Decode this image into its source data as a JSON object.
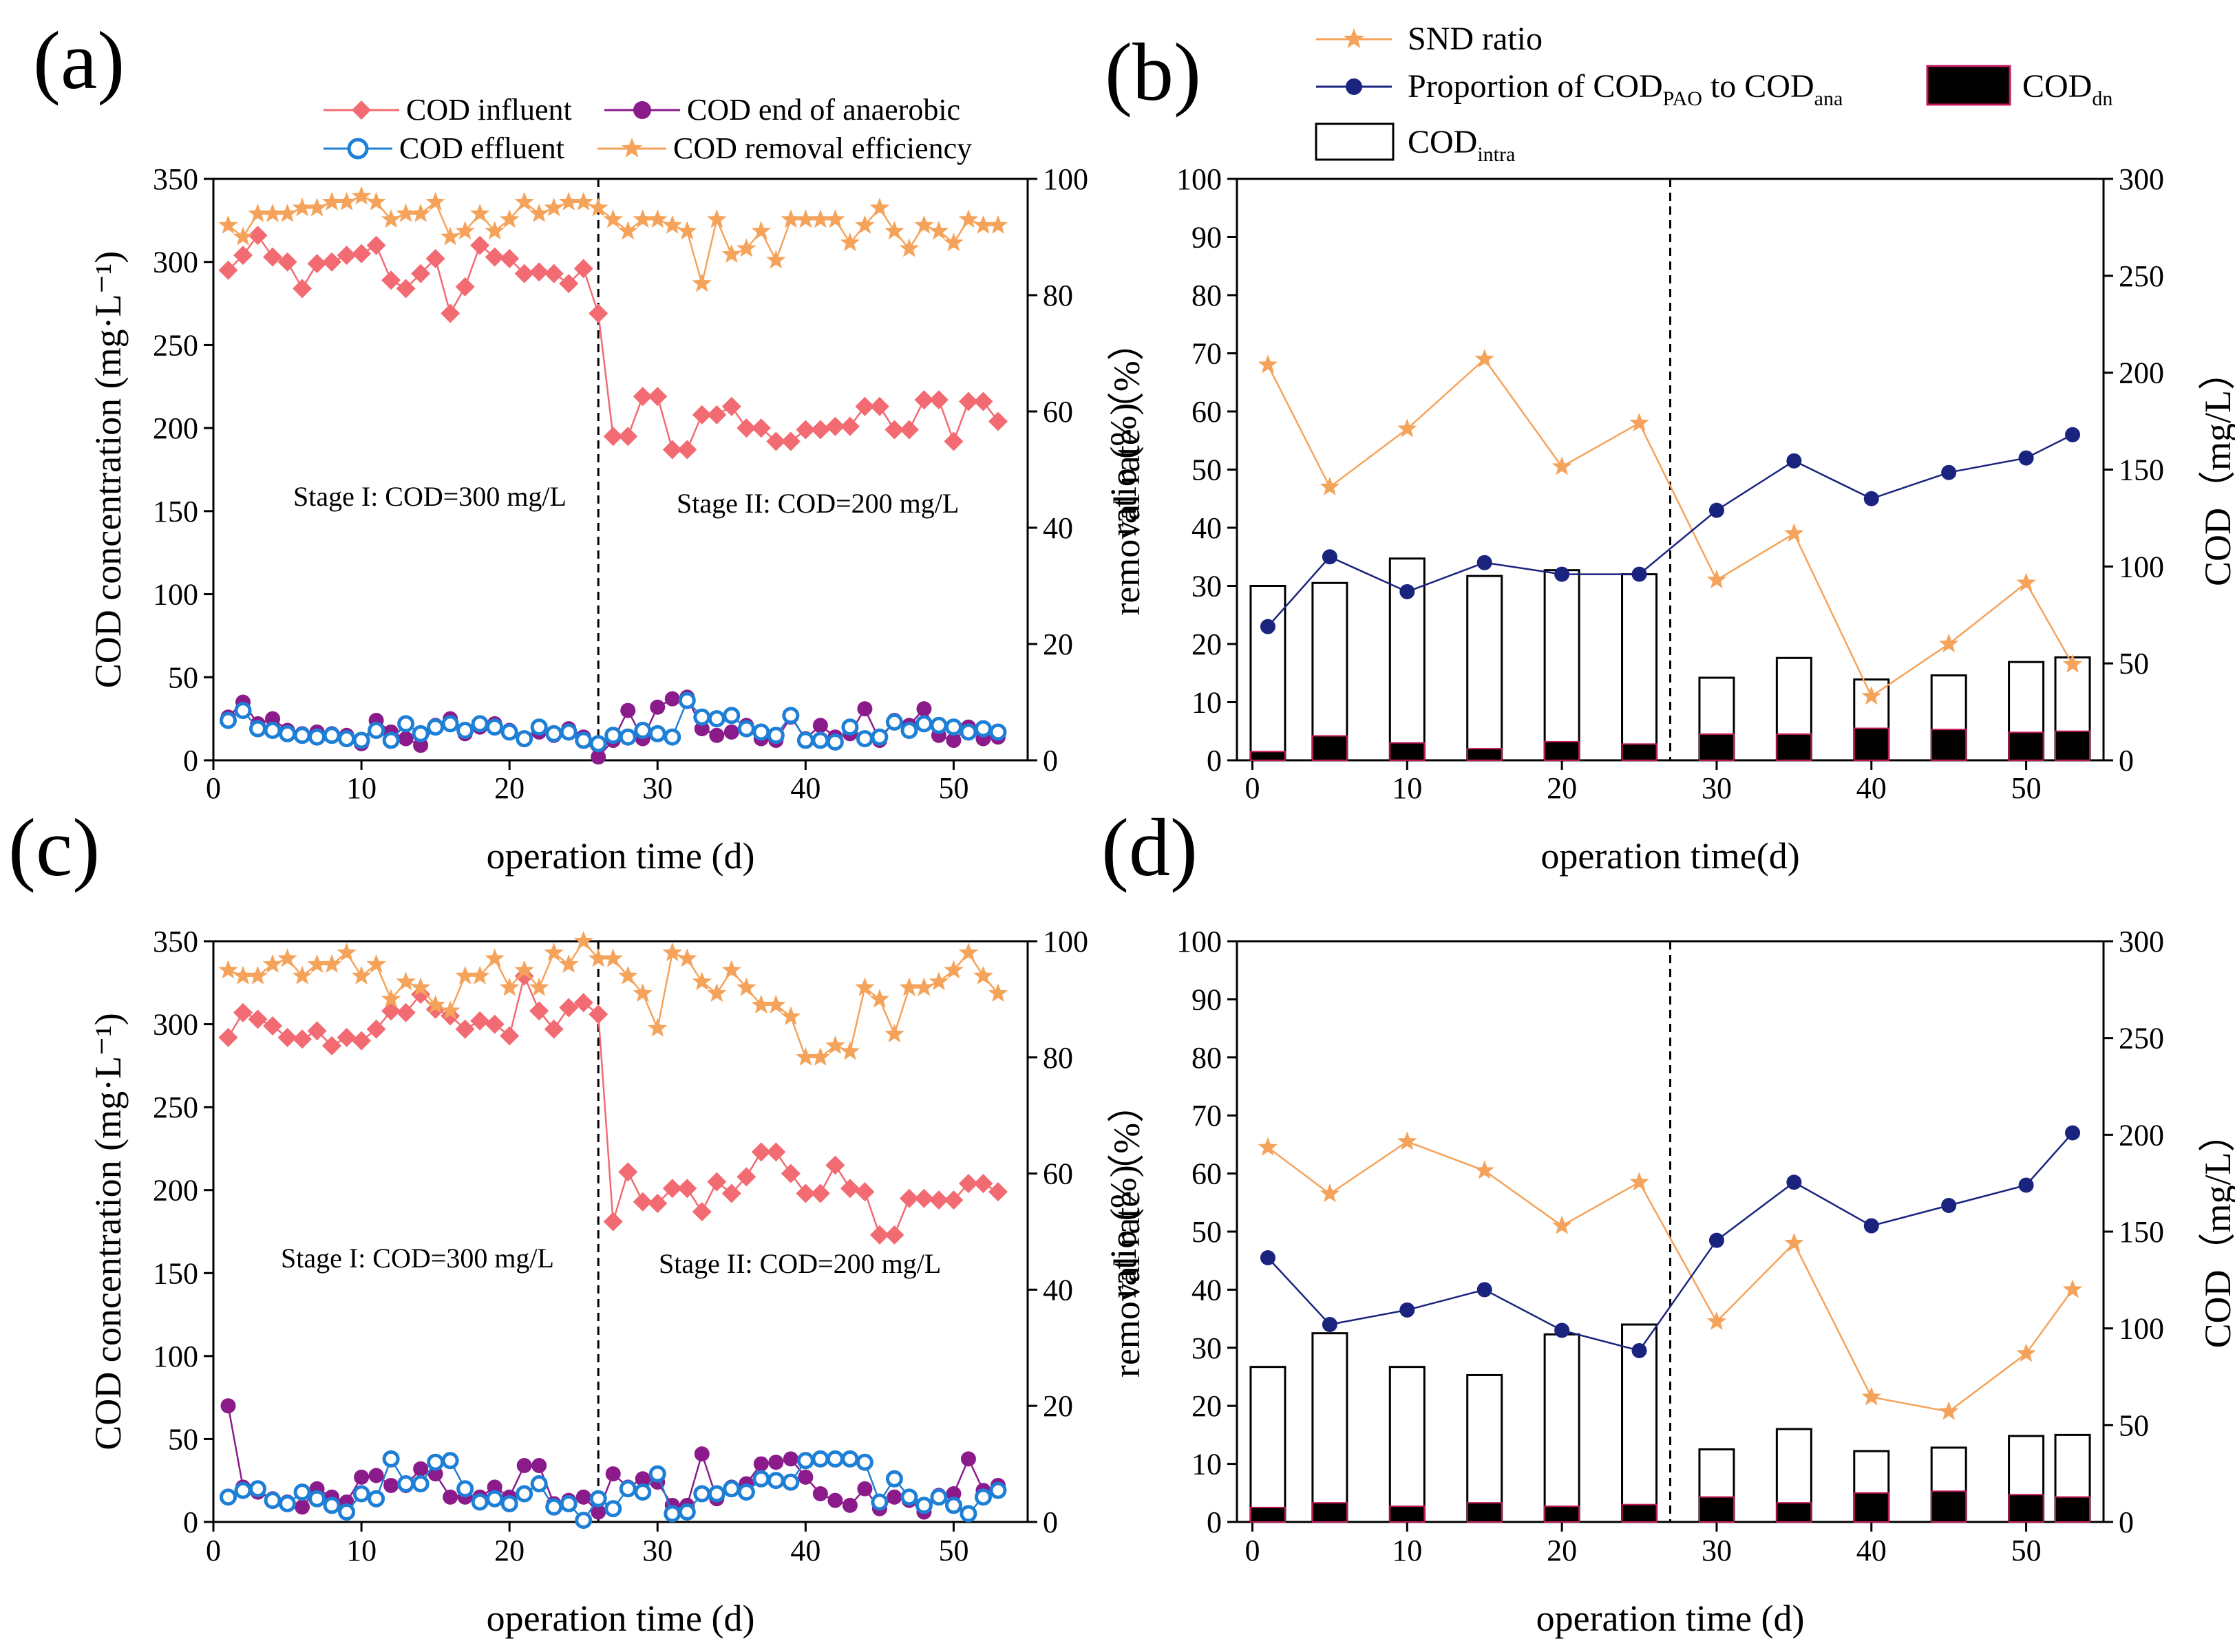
{
  "figure": {
    "panels": [
      {
        "id": "a",
        "label": "(a)"
      },
      {
        "id": "b",
        "label": "(b)"
      },
      {
        "id": "c",
        "label": "(c)"
      },
      {
        "id": "d",
        "label": "(d)"
      }
    ]
  },
  "colors": {
    "influent": "#f26b72",
    "anaerobic": "#8b1a8b",
    "effluent": "#1e7fd6",
    "removal": "#f5a35a",
    "snd": "#f5a35a",
    "pao": "#1a237e",
    "dn": "#000000",
    "intra": "#ffffff"
  },
  "chart_data": [
    {
      "panel": "a",
      "type": "line",
      "xlabel": "operation time (d)",
      "ylabel": "COD concentration (mg·L⁻¹)",
      "ylabel_right": "removal rate（%）",
      "xlim": [
        0,
        55
      ],
      "ylim": [
        0,
        350
      ],
      "ylim_right": [
        0,
        100
      ],
      "xticks": [
        0,
        10,
        20,
        30,
        40,
        50
      ],
      "yticks": [
        0,
        50,
        100,
        150,
        200,
        250,
        300,
        350
      ],
      "yticks_right": [
        0,
        20,
        40,
        60,
        80,
        100
      ],
      "divider_x": 26,
      "annotations": [
        "Stage I: COD=300 mg/L",
        "Stage II: COD=200 mg/L"
      ],
      "legend": [
        "COD influent",
        "COD end of anaerobic",
        "COD effluent",
        "COD removal efficiency"
      ],
      "x": [
        1,
        2,
        3,
        4,
        5,
        6,
        7,
        8,
        9,
        10,
        11,
        12,
        13,
        14,
        15,
        16,
        17,
        18,
        19,
        20,
        21,
        22,
        23,
        24,
        25,
        26,
        27,
        28,
        29,
        30,
        31,
        32,
        33,
        34,
        35,
        36,
        37,
        38,
        39,
        40,
        41,
        42,
        43,
        44,
        45,
        46,
        47,
        48,
        49,
        50,
        51,
        52,
        53
      ],
      "series": [
        {
          "name": "COD influent",
          "axis": "left",
          "marker": "diamond",
          "values": [
            295,
            304,
            316,
            303,
            300,
            284,
            299,
            300,
            304,
            305,
            310,
            289,
            284,
            293,
            302,
            269,
            285,
            310,
            303,
            302,
            293,
            294,
            293,
            287,
            296,
            269,
            195,
            195,
            219,
            219,
            187,
            187,
            208,
            208,
            213,
            200,
            200,
            192,
            192,
            199,
            199,
            201,
            201,
            213,
            213,
            199,
            199,
            217,
            217,
            192,
            216,
            216,
            204
          ]
        },
        {
          "name": "COD end of anaerobic",
          "axis": "left",
          "marker": "circle",
          "values": [
            26,
            35,
            22,
            25,
            18,
            16,
            17,
            16,
            15,
            10,
            24,
            17,
            13,
            9,
            21,
            25,
            16,
            20,
            22,
            18,
            13,
            17,
            15,
            19,
            14,
            2,
            12,
            30,
            13,
            32,
            37,
            38,
            19,
            15,
            17,
            21,
            13,
            12,
            26,
            13,
            21,
            14,
            16,
            31,
            12,
            24,
            21,
            31,
            15,
            12,
            20,
            13,
            14
          ]
        },
        {
          "name": "COD effluent",
          "axis": "left",
          "marker": "circle",
          "values": [
            24,
            30,
            19,
            18,
            16,
            15,
            14,
            15,
            13,
            12,
            18,
            12,
            22,
            16,
            20,
            22,
            18,
            22,
            20,
            17,
            13,
            20,
            16,
            17,
            12,
            10,
            15,
            14,
            18,
            16,
            14,
            36,
            26,
            25,
            27,
            19,
            17,
            15,
            27,
            12,
            12,
            11,
            20,
            13,
            14,
            23,
            18,
            22,
            21,
            20,
            17,
            19,
            17
          ]
        },
        {
          "name": "COD removal efficiency",
          "axis": "right",
          "marker": "star",
          "values": [
            92,
            90,
            94,
            94,
            94,
            95,
            95,
            96,
            96,
            97,
            96,
            93,
            94,
            94,
            96,
            90,
            91,
            94,
            91,
            93,
            96,
            94,
            95,
            96,
            96,
            95,
            93,
            91,
            93,
            93,
            92,
            91,
            82,
            93,
            87,
            88,
            91,
            86,
            93,
            93,
            93,
            93,
            89,
            92,
            95,
            91,
            88,
            92,
            91,
            89,
            93,
            92,
            92
          ]
        }
      ]
    },
    {
      "panel": "b",
      "type": "bar",
      "xlabel": "operation time(d)",
      "ylabel": "ratio (%)",
      "ylabel_right": "COD（mg/L）",
      "xlim": [
        -1,
        55
      ],
      "ylim": [
        0,
        100
      ],
      "ylim_right": [
        0,
        300
      ],
      "xticks": [
        0,
        10,
        20,
        30,
        40,
        50
      ],
      "yticks": [
        0,
        10,
        20,
        30,
        40,
        50,
        60,
        70,
        80,
        90,
        100
      ],
      "yticks_right": [
        0,
        50,
        100,
        150,
        200,
        250,
        300
      ],
      "divider_x": 27,
      "legend": [
        "SND ratio",
        "Proportion of COD",
        "PAO",
        " to COD",
        "ana",
        "COD",
        "dn",
        "COD",
        "intra"
      ],
      "bar_x": [
        1,
        5,
        10,
        15,
        20,
        25,
        30,
        35,
        40,
        45,
        50,
        53
      ],
      "bar_total": [
        30,
        30.5,
        34.7,
        31.7,
        32.7,
        32,
        14.2,
        17.6,
        13.9,
        14.6,
        16.9,
        17.7
      ],
      "bar_dn": [
        1.5,
        4.2,
        3.0,
        2.0,
        3.2,
        2.8,
        4.5,
        4.5,
        5.5,
        5.3,
        4.8,
        5.0
      ],
      "series": [
        {
          "name": "SND ratio",
          "axis": "left",
          "marker": "star",
          "x": [
            1,
            5,
            10,
            15,
            20,
            25,
            30,
            35,
            40,
            45,
            50,
            53
          ],
          "values": [
            68,
            47,
            57,
            69,
            50.5,
            58,
            31,
            39,
            11,
            20,
            30.5,
            16.5
          ]
        },
        {
          "name": "Proportion of COD_PAO to COD_ana",
          "axis": "left",
          "marker": "circle",
          "x": [
            1,
            5,
            10,
            15,
            20,
            25,
            30,
            35,
            40,
            45,
            50,
            53
          ],
          "values": [
            23,
            35,
            29,
            34,
            32,
            32,
            43,
            51.5,
            45,
            49.5,
            52,
            56
          ]
        }
      ]
    },
    {
      "panel": "c",
      "type": "line",
      "xlabel": "operation time (d)",
      "ylabel": "COD concentration (mg·L⁻¹)",
      "ylabel_right": "removal rate（%）",
      "xlim": [
        0,
        55
      ],
      "ylim": [
        0,
        350
      ],
      "ylim_right": [
        0,
        100
      ],
      "xticks": [
        0,
        10,
        20,
        30,
        40,
        50
      ],
      "yticks": [
        0,
        50,
        100,
        150,
        200,
        250,
        300,
        350
      ],
      "yticks_right": [
        0,
        20,
        40,
        60,
        80,
        100
      ],
      "divider_x": 26,
      "annotations": [
        "Stage I: COD=300 mg/L",
        "Stage II: COD=200 mg/L"
      ],
      "x": [
        1,
        2,
        3,
        4,
        5,
        6,
        7,
        8,
        9,
        10,
        11,
        12,
        13,
        14,
        15,
        16,
        17,
        18,
        19,
        20,
        21,
        22,
        23,
        24,
        25,
        26,
        27,
        28,
        29,
        30,
        31,
        32,
        33,
        34,
        35,
        36,
        37,
        38,
        39,
        40,
        41,
        42,
        43,
        44,
        45,
        46,
        47,
        48,
        49,
        50,
        51,
        52,
        53
      ],
      "series": [
        {
          "name": "COD influent",
          "axis": "left",
          "marker": "diamond",
          "values": [
            292,
            307,
            303,
            299,
            292,
            291,
            296,
            287,
            292,
            290,
            297,
            308,
            307,
            318,
            309,
            305,
            297,
            302,
            300,
            293,
            329,
            308,
            297,
            310,
            313,
            306,
            181,
            211,
            193,
            192,
            201,
            201,
            187,
            205,
            198,
            208,
            223,
            223,
            210,
            198,
            198,
            215,
            201,
            199,
            173,
            173,
            195,
            195,
            194,
            194,
            204,
            204,
            199
          ]
        },
        {
          "name": "COD end of anaerobic",
          "axis": "left",
          "marker": "circle",
          "values": [
            70,
            21,
            18,
            14,
            12,
            9,
            20,
            15,
            12,
            27,
            28,
            22,
            22,
            32,
            29,
            15,
            15,
            15,
            21,
            15,
            34,
            34,
            11,
            13,
            15,
            6,
            29,
            21,
            26,
            24,
            10,
            10,
            41,
            14,
            21,
            23,
            35,
            36,
            38,
            27,
            17,
            13,
            10,
            20,
            8,
            15,
            13,
            6,
            16,
            17,
            38,
            19,
            22
          ]
        },
        {
          "name": "COD effluent",
          "axis": "left",
          "marker": "circle",
          "values": [
            15,
            19,
            20,
            13,
            11,
            18,
            14,
            10,
            6,
            17,
            14,
            38,
            23,
            23,
            36,
            37,
            20,
            12,
            14,
            11,
            17,
            23,
            9,
            11,
            1,
            14,
            8,
            20,
            18,
            29,
            5,
            6,
            17,
            17,
            20,
            18,
            26,
            25,
            24,
            37,
            38,
            38,
            38,
            36,
            12,
            26,
            15,
            10,
            15,
            10,
            5,
            15,
            19
          ]
        },
        {
          "name": "COD removal efficiency",
          "axis": "right",
          "marker": "star",
          "values": [
            95,
            94,
            94,
            96,
            97,
            94,
            96,
            96,
            98,
            94,
            96,
            90,
            93,
            92,
            89,
            88,
            94,
            94,
            97,
            92,
            95,
            92,
            98,
            96,
            100,
            97,
            97,
            94,
            91,
            85,
            98,
            97,
            93,
            91,
            95,
            92,
            89,
            89,
            87,
            80,
            80,
            82,
            81,
            92,
            90,
            84,
            92,
            92,
            93,
            95,
            98,
            94,
            91
          ]
        }
      ]
    },
    {
      "panel": "d",
      "type": "bar",
      "xlabel": "operation time (d)",
      "ylabel": "ratio (%)",
      "ylabel_right": "COD（mg/L）",
      "xlim": [
        -1,
        55
      ],
      "ylim": [
        0,
        100
      ],
      "ylim_right": [
        0,
        300
      ],
      "xticks": [
        0,
        10,
        20,
        30,
        40,
        50
      ],
      "yticks": [
        0,
        10,
        20,
        30,
        40,
        50,
        60,
        70,
        80,
        90,
        100
      ],
      "yticks_right": [
        0,
        50,
        100,
        150,
        200,
        250,
        300
      ],
      "divider_x": 27,
      "bar_x": [
        1,
        5,
        10,
        15,
        20,
        25,
        30,
        35,
        40,
        45,
        50,
        53
      ],
      "bar_total": [
        26.7,
        32.5,
        26.7,
        25.3,
        32.3,
        34,
        12.5,
        16,
        12.2,
        12.8,
        14.8,
        15
      ],
      "bar_dn": [
        2.5,
        3.3,
        2.7,
        3.3,
        2.7,
        3.0,
        4.3,
        3.3,
        5.0,
        5.3,
        4.7,
        4.3
      ],
      "series": [
        {
          "name": "SND ratio",
          "axis": "left",
          "marker": "star",
          "x": [
            1,
            5,
            10,
            15,
            20,
            25,
            30,
            35,
            40,
            45,
            50,
            53
          ],
          "values": [
            64.5,
            56.5,
            65.5,
            60.5,
            51,
            58.5,
            34.5,
            48,
            21.5,
            19,
            29,
            40
          ]
        },
        {
          "name": "Proportion of COD_PAO to COD_ana",
          "axis": "left",
          "marker": "circle",
          "x": [
            1,
            5,
            10,
            15,
            20,
            25,
            30,
            35,
            40,
            45,
            50,
            53
          ],
          "values": [
            45.5,
            34,
            36.5,
            40,
            33,
            29.5,
            48.5,
            58.5,
            51,
            54.5,
            58,
            67
          ]
        }
      ]
    }
  ]
}
